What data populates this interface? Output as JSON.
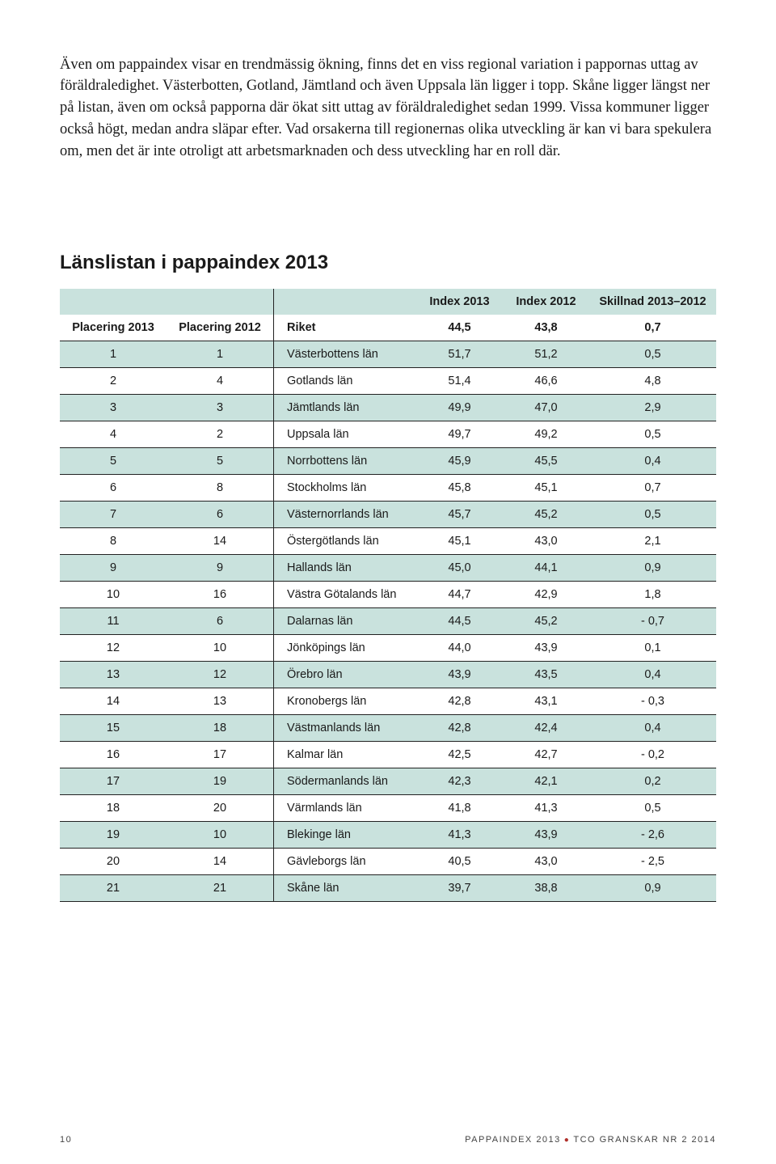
{
  "body_text": "Även om pappaindex visar en trendmässig ökning, finns det en viss regional variation i pappornas uttag av föräldraledighet. Västerbotten, Gotland, Jämtland och även Uppsala län ligger i topp. Skåne ligger längst ner på listan, även om också papporna där ökat sitt uttag av föräldraledighet sedan 1999. Vissa kommuner ligger också högt, medan andra släpar efter. Vad orsakerna till regionernas olika utveckling är kan vi bara spekulera om, men det är inte otroligt att arbetsmarknaden och dess utveckling har en roll där.",
  "table_title": "Länslistan i pappaindex 2013",
  "headers": {
    "index_2013": "Index 2013",
    "index_2012": "Index 2012",
    "diff": "Skillnad 2013–2012",
    "p2013": "Placering 2013",
    "p2012": "Placering 2012",
    "riket": "Riket",
    "riket_i13": "44,5",
    "riket_i12": "43,8",
    "riket_diff": "0,7"
  },
  "rows": [
    {
      "p13": "1",
      "p12": "1",
      "name": "Västerbottens län",
      "i13": "51,7",
      "i12": "51,2",
      "d": "0,5"
    },
    {
      "p13": "2",
      "p12": "4",
      "name": "Gotlands län",
      "i13": "51,4",
      "i12": "46,6",
      "d": "4,8"
    },
    {
      "p13": "3",
      "p12": "3",
      "name": "Jämtlands län",
      "i13": "49,9",
      "i12": "47,0",
      "d": "2,9"
    },
    {
      "p13": "4",
      "p12": "2",
      "name": "Uppsala län",
      "i13": "49,7",
      "i12": "49,2",
      "d": "0,5"
    },
    {
      "p13": "5",
      "p12": "5",
      "name": "Norrbottens län",
      "i13": "45,9",
      "i12": "45,5",
      "d": "0,4"
    },
    {
      "p13": "6",
      "p12": "8",
      "name": "Stockholms län",
      "i13": "45,8",
      "i12": "45,1",
      "d": "0,7"
    },
    {
      "p13": "7",
      "p12": "6",
      "name": "Västernorrlands län",
      "i13": "45,7",
      "i12": "45,2",
      "d": "0,5"
    },
    {
      "p13": "8",
      "p12": "14",
      "name": "Östergötlands län",
      "i13": "45,1",
      "i12": "43,0",
      "d": "2,1"
    },
    {
      "p13": "9",
      "p12": "9",
      "name": "Hallands län",
      "i13": "45,0",
      "i12": "44,1",
      "d": "0,9"
    },
    {
      "p13": "10",
      "p12": "16",
      "name": "Västra Götalands län",
      "i13": "44,7",
      "i12": "42,9",
      "d": "1,8"
    },
    {
      "p13": "11",
      "p12": "6",
      "name": "Dalarnas län",
      "i13": "44,5",
      "i12": "45,2",
      "d": "- 0,7"
    },
    {
      "p13": "12",
      "p12": "10",
      "name": "Jönköpings län",
      "i13": "44,0",
      "i12": "43,9",
      "d": "0,1"
    },
    {
      "p13": "13",
      "p12": "12",
      "name": "Örebro län",
      "i13": "43,9",
      "i12": "43,5",
      "d": "0,4"
    },
    {
      "p13": "14",
      "p12": "13",
      "name": "Kronobergs län",
      "i13": "42,8",
      "i12": "43,1",
      "d": "- 0,3"
    },
    {
      "p13": "15",
      "p12": "18",
      "name": "Västmanlands län",
      "i13": "42,8",
      "i12": "42,4",
      "d": "0,4"
    },
    {
      "p13": "16",
      "p12": "17",
      "name": "Kalmar län",
      "i13": "42,5",
      "i12": "42,7",
      "d": "- 0,2"
    },
    {
      "p13": "17",
      "p12": "19",
      "name": "Södermanlands län",
      "i13": "42,3",
      "i12": "42,1",
      "d": "0,2"
    },
    {
      "p13": "18",
      "p12": "20",
      "name": "Värmlands län",
      "i13": "41,8",
      "i12": "41,3",
      "d": "0,5"
    },
    {
      "p13": "19",
      "p12": "10",
      "name": "Blekinge län",
      "i13": "41,3",
      "i12": "43,9",
      "d": "- 2,6"
    },
    {
      "p13": "20",
      "p12": "14",
      "name": "Gävleborgs län",
      "i13": "40,5",
      "i12": "43,0",
      "d": "- 2,5"
    },
    {
      "p13": "21",
      "p12": "21",
      "name": "Skåne län",
      "i13": "39,7",
      "i12": "38,8",
      "d": "0,9"
    }
  ],
  "footer": {
    "page_no": "10",
    "right_a": "PAPPAINDEX 2013",
    "right_b": "TCO GRANSKAR NR 2 2014"
  }
}
